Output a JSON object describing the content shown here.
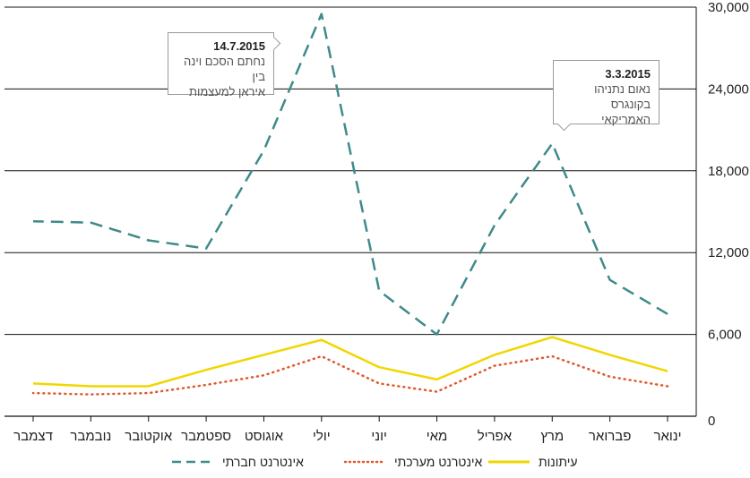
{
  "chart_data": {
    "type": "line",
    "categories": [
      "ינואר",
      "פברואר",
      "מרץ",
      "אפריל",
      "מאי",
      "יוני",
      "יולי",
      "אוגוסט",
      "ספטמבר",
      "אוקטובר",
      "נובמבר",
      "דצמבר"
    ],
    "series": [
      {
        "name": "עיתונות",
        "color": "#f2d600",
        "style": "solid",
        "values": [
          3300,
          4500,
          5800,
          4500,
          2700,
          3600,
          5600,
          4500,
          3400,
          2200,
          2200,
          2400
        ]
      },
      {
        "name": "אינטרנט מערכתי",
        "color": "#e0582a",
        "style": "dotted",
        "values": [
          2200,
          2900,
          4400,
          3700,
          1800,
          2400,
          4400,
          3000,
          2300,
          1700,
          1600,
          1700
        ]
      },
      {
        "name": "אינטרנט חברתי",
        "color": "#3f8a8a",
        "style": "dashed",
        "values": [
          7500,
          10000,
          20000,
          14000,
          6000,
          9200,
          29500,
          19500,
          12300,
          12900,
          14200,
          14300
        ]
      }
    ],
    "yticks": [
      "0",
      "6,000",
      "12,000",
      "18,000",
      "24,000",
      "30,000"
    ],
    "ylim": [
      0,
      30000
    ],
    "x_direction": "right-to-left",
    "grid": "horizontal"
  },
  "annotations": [
    {
      "date": "14.7.2015",
      "line1": "נחתם הסכם וינה בין",
      "line2": "איראן למעצמות"
    },
    {
      "date": "3.3.2015",
      "line1": "נאום נתניהו",
      "line2": "בקונגרס האמריקאי"
    }
  ],
  "legend": [
    {
      "label": "עיתונות"
    },
    {
      "label": "אינטרנט מערכתי"
    },
    {
      "label": "אינטרנט חברתי"
    }
  ]
}
